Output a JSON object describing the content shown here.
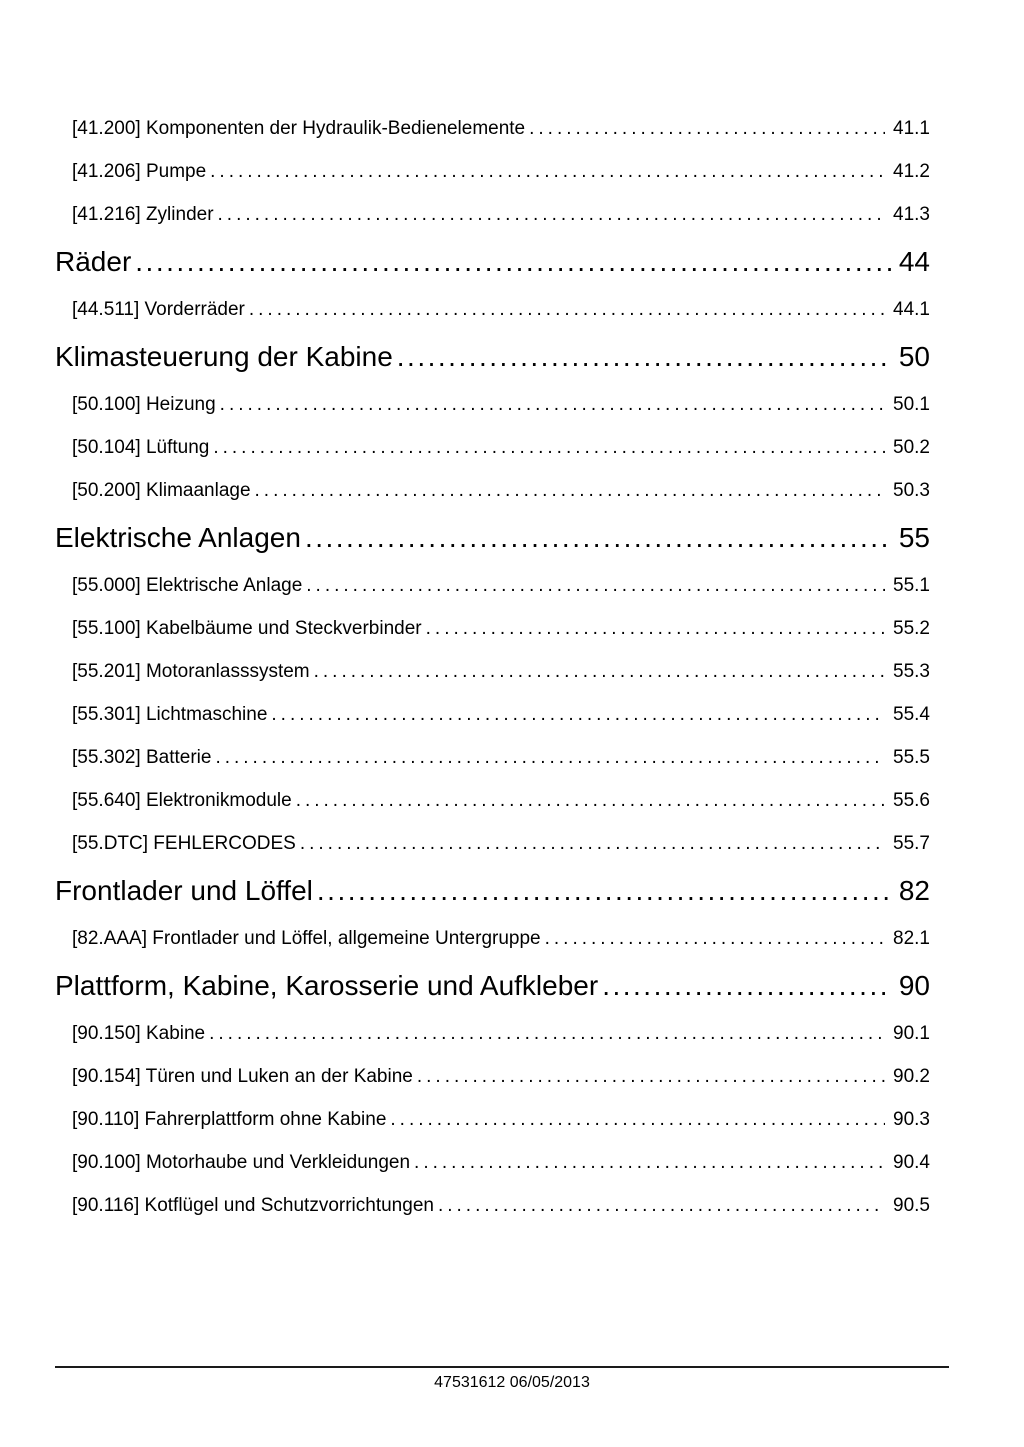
{
  "page": {
    "paper_color": "#ffffff",
    "ink_color": "#000000"
  },
  "toc": {
    "entries": [
      {
        "level": "sub",
        "code": "[41.200]",
        "title": "Komponenten der Hydraulik-Bedienelemente",
        "page": "41.1"
      },
      {
        "level": "sub",
        "code": "[41.206]",
        "title": "Pumpe",
        "page": "41.2"
      },
      {
        "level": "sub",
        "code": "[41.216]",
        "title": "Zylinder",
        "page": "41.3"
      },
      {
        "level": "chapter",
        "code": "",
        "title": "Räder",
        "page": "44"
      },
      {
        "level": "sub",
        "code": "[44.511]",
        "title": "Vorderräder",
        "page": "44.1"
      },
      {
        "level": "chapter",
        "code": "",
        "title": "Klimasteuerung der Kabine",
        "page": "50"
      },
      {
        "level": "sub",
        "code": "[50.100]",
        "title": "Heizung",
        "page": "50.1"
      },
      {
        "level": "sub",
        "code": "[50.104]",
        "title": "Lüftung",
        "page": "50.2"
      },
      {
        "level": "sub",
        "code": "[50.200]",
        "title": "Klimaanlage",
        "page": "50.3"
      },
      {
        "level": "chapter",
        "code": "",
        "title": "Elektrische Anlagen",
        "page": "55"
      },
      {
        "level": "sub",
        "code": "[55.000]",
        "title": "Elektrische Anlage",
        "page": "55.1"
      },
      {
        "level": "sub",
        "code": "[55.100]",
        "title": "Kabelbäume und Steckverbinder",
        "page": "55.2"
      },
      {
        "level": "sub",
        "code": "[55.201]",
        "title": "Motoranlasssystem",
        "page": "55.3"
      },
      {
        "level": "sub",
        "code": "[55.301]",
        "title": "Lichtmaschine",
        "page": "55.4"
      },
      {
        "level": "sub",
        "code": "[55.302]",
        "title": "Batterie",
        "page": "55.5"
      },
      {
        "level": "sub",
        "code": "[55.640]",
        "title": "Elektronikmodule",
        "page": "55.6"
      },
      {
        "level": "sub",
        "code": "[55.DTC]",
        "title": "FEHLERCODES",
        "page": "55.7"
      },
      {
        "level": "chapter",
        "code": "",
        "title": "Frontlader und Löffel",
        "page": "82"
      },
      {
        "level": "sub",
        "code": "[82.AAA]",
        "title": "Frontlader und Löffel, allgemeine Untergruppe",
        "page": "82.1"
      },
      {
        "level": "chapter",
        "code": "",
        "title": "Plattform, Kabine, Karosserie und Aufkleber",
        "page": "90"
      },
      {
        "level": "sub",
        "code": "[90.150]",
        "title": "Kabine",
        "page": "90.1"
      },
      {
        "level": "sub",
        "code": "[90.154]",
        "title": "Türen und Luken an der Kabine",
        "page": "90.2"
      },
      {
        "level": "sub",
        "code": "[90.110]",
        "title": "Fahrerplattform ohne Kabine",
        "page": "90.3"
      },
      {
        "level": "sub",
        "code": "[90.100]",
        "title": "Motorhaube und Verkleidungen",
        "page": "90.4"
      },
      {
        "level": "sub",
        "code": "[90.116]",
        "title": "Kotflügel und Schutzvorrichtungen",
        "page": "90.5"
      }
    ]
  },
  "footer": {
    "text": "47531612 06/05/2013"
  }
}
